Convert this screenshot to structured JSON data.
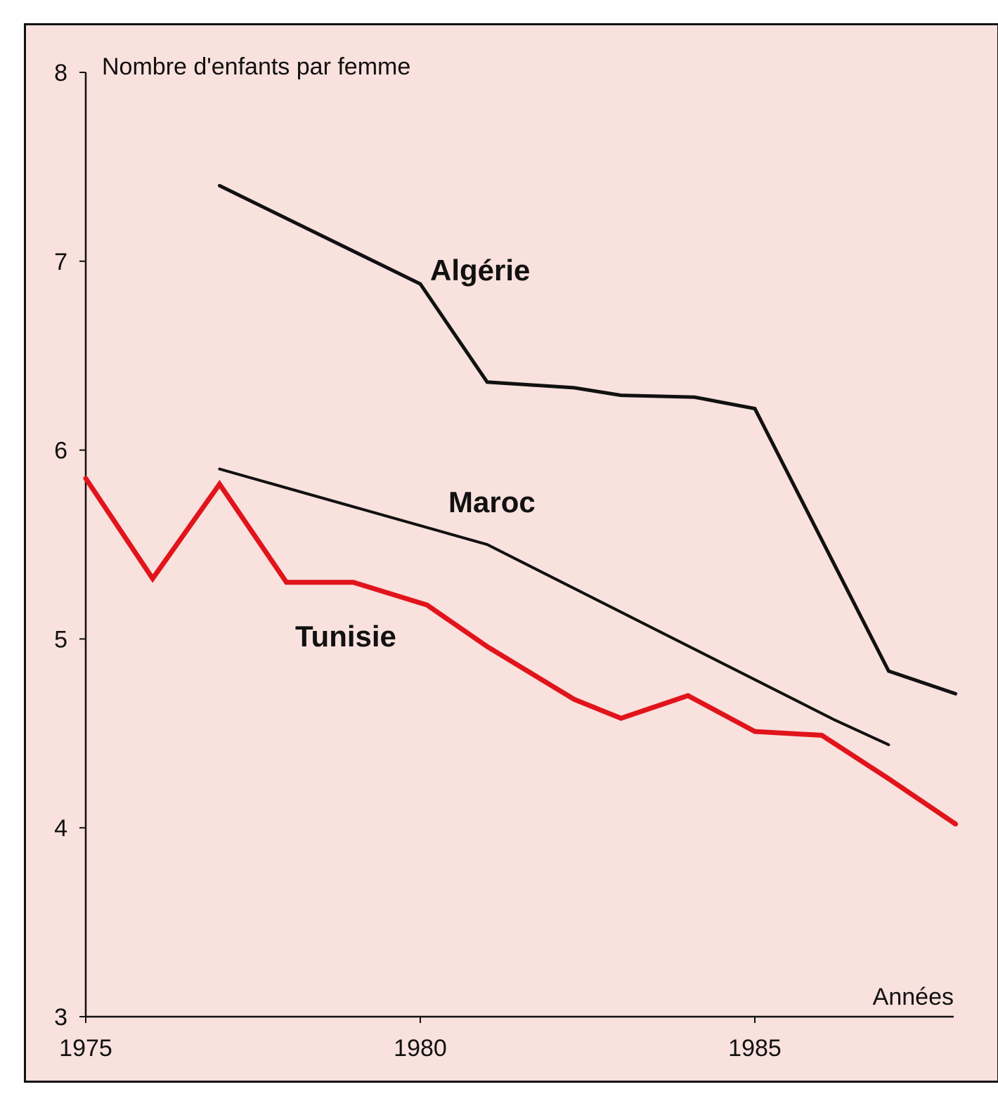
{
  "chart_data": {
    "type": "line",
    "title": "",
    "xlabel": "Années",
    "ylabel": "Nombre d'enfants par femme",
    "xlim": [
      1975,
      1988
    ],
    "ylim": [
      3,
      8
    ],
    "xticks": [
      1975,
      1980,
      1985
    ],
    "yticks": [
      3,
      4,
      5,
      6,
      7,
      8
    ],
    "grid": false,
    "series": [
      {
        "name": "Algérie",
        "color": "#111111",
        "x": [
          1977,
          1980,
          1981,
          1982.3,
          1983,
          1984.1,
          1985,
          1987,
          1988
        ],
        "y": [
          7.4,
          6.88,
          6.36,
          6.33,
          6.29,
          6.28,
          6.22,
          4.83,
          4.71
        ]
      },
      {
        "name": "Maroc",
        "color": "#111111",
        "x": [
          1977,
          1981,
          1986.2,
          1987
        ],
        "y": [
          5.9,
          5.5,
          4.57,
          4.44
        ]
      },
      {
        "name": "Tunisie",
        "color": "#e1141b",
        "x": [
          1975,
          1976,
          1977,
          1978,
          1979,
          1980.1,
          1981,
          1982.3,
          1983,
          1984,
          1985,
          1986,
          1987,
          1988
        ],
        "y": [
          5.85,
          5.32,
          5.82,
          5.3,
          5.3,
          5.18,
          4.96,
          4.68,
          4.58,
          4.7,
          4.51,
          4.49,
          4.26,
          4.02
        ]
      }
    ]
  }
}
